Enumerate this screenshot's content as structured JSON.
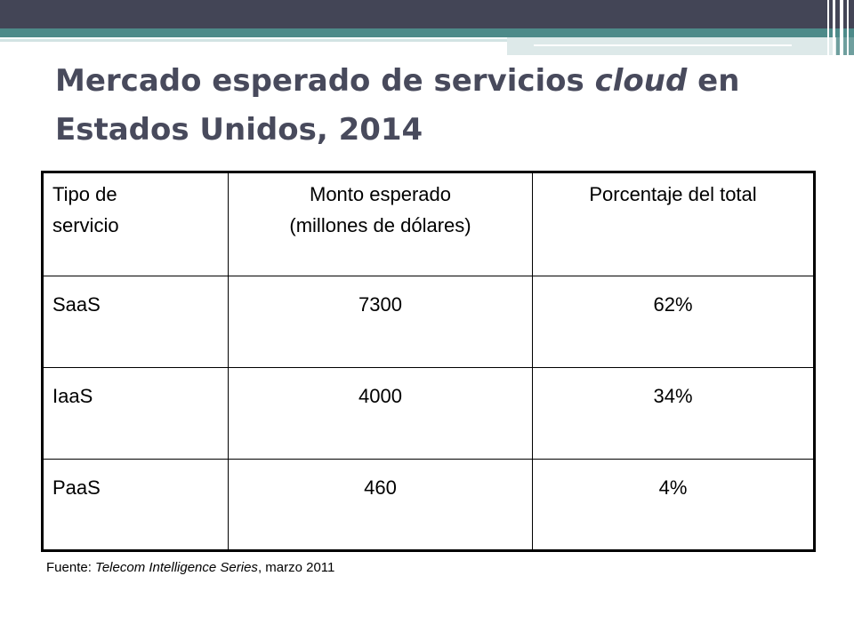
{
  "title": {
    "part1": "Mercado esperado de servicios ",
    "emphasis": "cloud",
    "part2": " en Estados Unidos, 2014"
  },
  "table": {
    "headers": {
      "col1_line1": "Tipo de",
      "col1_line2": "servicio",
      "col2_line1": "Monto esperado",
      "col2_line2": "(millones de dólares)",
      "col3": "Porcentaje del total"
    },
    "rows": [
      {
        "tipo": "SaaS",
        "monto": "7300",
        "porcentaje": "62%"
      },
      {
        "tipo": "IaaS",
        "monto": "4000",
        "porcentaje": "34%"
      },
      {
        "tipo": "PaaS",
        "monto": "460",
        "porcentaje": "4%"
      }
    ]
  },
  "source": {
    "prefix": "Fuente: ",
    "publication": "Telecom Intelligence Series",
    "suffix": ", marzo 2011"
  },
  "colors": {
    "header_dark": "#434556",
    "header_teal": "#4d8a89",
    "title_text": "#484a5c"
  }
}
